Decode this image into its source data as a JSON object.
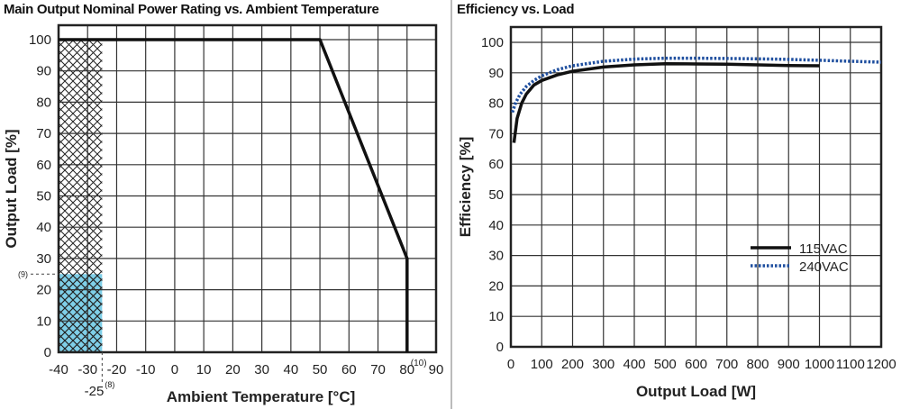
{
  "chart_data": [
    {
      "type": "line",
      "title": "Main Output Nominal Power Rating vs. Ambient Temperature",
      "xlabel": "Ambient Temperature [°C]",
      "ylabel": "Output Load [%]",
      "xlim": [
        -40,
        90
      ],
      "ylim": [
        0,
        100
      ],
      "xticks": [
        -40,
        -30,
        -20,
        -10,
        0,
        10,
        20,
        30,
        40,
        50,
        60,
        70,
        80,
        90
      ],
      "yticks": [
        0,
        10,
        20,
        30,
        40,
        50,
        60,
        70,
        80,
        90,
        100
      ],
      "grid": true,
      "series": [
        {
          "x": [
            -40,
            50,
            80,
            80
          ],
          "y": [
            100,
            100,
            30,
            0
          ],
          "color": "#111111"
        }
      ],
      "regions": [
        {
          "x": [
            -40,
            -25
          ],
          "y": [
            0,
            100
          ],
          "fill": "crosshatch"
        },
        {
          "x": [
            -40,
            -25
          ],
          "y": [
            0,
            25
          ],
          "fill": "#7fcfe8"
        }
      ],
      "annotations": [
        {
          "text": "(9)",
          "at_y": 25
        },
        {
          "text": "-25",
          "sup": "(8)",
          "at_x": -25
        },
        {
          "text": "(10)",
          "at_x": 80
        }
      ]
    },
    {
      "type": "line",
      "title": "Efficiency vs. Load",
      "xlabel": "Output Load [W]",
      "ylabel": "Efficiency [%]",
      "xlim": [
        0,
        1200
      ],
      "ylim": [
        0,
        100
      ],
      "xticks": [
        0,
        100,
        200,
        300,
        400,
        500,
        600,
        700,
        800,
        900,
        1000,
        1100,
        1200
      ],
      "yticks": [
        0,
        10,
        20,
        30,
        40,
        50,
        60,
        70,
        80,
        90,
        100
      ],
      "grid": true,
      "legend": "center-right",
      "series": [
        {
          "name": "115VAC",
          "style": "solid",
          "color": "#111111",
          "x": [
            10,
            20,
            35,
            50,
            75,
            100,
            150,
            200,
            300,
            400,
            500,
            600,
            700,
            800,
            900,
            1000
          ],
          "y": [
            67,
            75,
            80,
            83,
            86,
            87.5,
            89.3,
            90.5,
            91.9,
            92.6,
            93,
            92.9,
            92.8,
            92.6,
            92.4,
            92.3
          ]
        },
        {
          "name": "240VAC",
          "style": "dotted",
          "color": "#1f4f9f",
          "x": [
            5,
            15,
            30,
            50,
            75,
            100,
            150,
            200,
            300,
            400,
            500,
            600,
            700,
            800,
            900,
            1000,
            1100,
            1200
          ],
          "y": [
            77,
            80,
            83,
            85.5,
            87.5,
            89,
            91,
            92.3,
            93.8,
            94.5,
            94.8,
            94.8,
            94.7,
            94.6,
            94.4,
            94.1,
            93.8,
            93.5
          ]
        }
      ]
    }
  ]
}
